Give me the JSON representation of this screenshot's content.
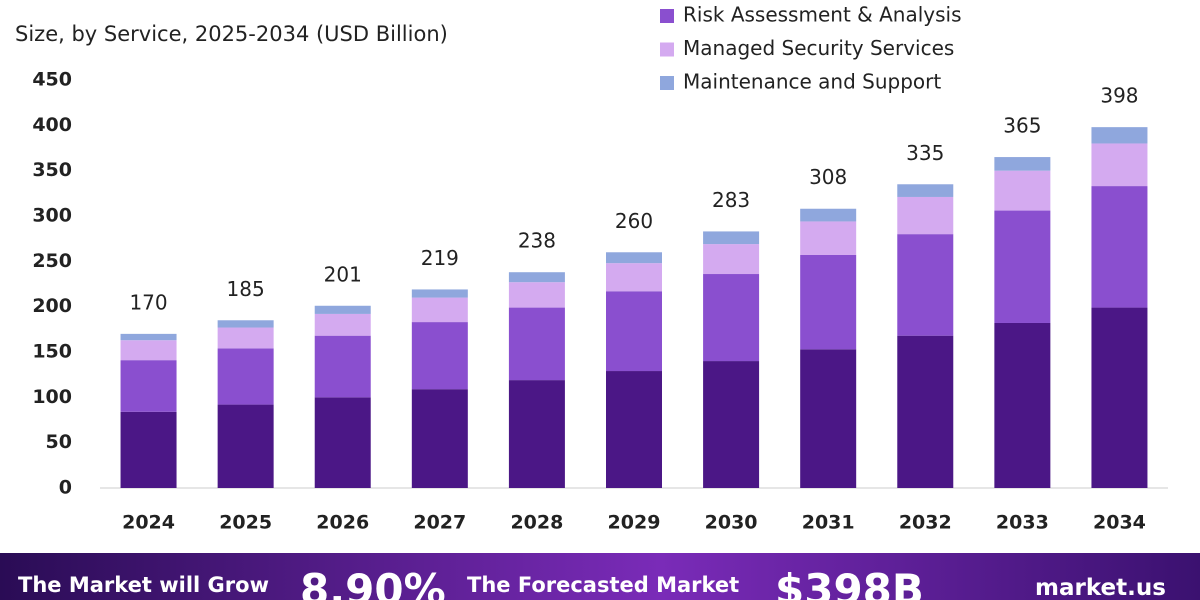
{
  "chart_data": {
    "type": "stacked-bar",
    "subtitle": "Size, by Service, 2025-2034 (USD Billion)",
    "categories": [
      "2024",
      "2025",
      "2026",
      "2027",
      "2028",
      "2029",
      "2030",
      "2031",
      "2032",
      "2033",
      "2034"
    ],
    "series": [
      {
        "color": "#4b1786",
        "values": [
          84,
          92,
          100,
          109,
          119,
          129,
          140,
          153,
          168,
          182,
          199
        ]
      },
      {
        "name": "Risk Assessment & Analysis",
        "color": "#8a4fcf",
        "values": [
          57,
          62,
          68,
          74,
          80,
          88,
          96,
          104,
          112,
          124,
          134
        ]
      },
      {
        "name": "Managed Security Services",
        "color": "#d4aaf0",
        "values": [
          22,
          23,
          24,
          27,
          28,
          31,
          33,
          37,
          41,
          44,
          47
        ]
      },
      {
        "name": "Maintenance and Support",
        "color": "#8fa7dd",
        "values": [
          7,
          8,
          9,
          9,
          11,
          12,
          14,
          14,
          14,
          15,
          18
        ]
      }
    ],
    "totals": [
      170,
      185,
      201,
      219,
      238,
      260,
      283,
      308,
      335,
      365,
      398
    ],
    "ylim": [
      0,
      450
    ],
    "yticks": [
      0,
      50,
      100,
      150,
      200,
      250,
      300,
      350,
      400,
      450
    ],
    "grid": false
  },
  "footer": {
    "grow_text": "The Market will Grow",
    "cagr": "8.90%",
    "forecast_text": "The Forecasted Market",
    "forecast_value": "$398B",
    "brand": "market.us"
  }
}
